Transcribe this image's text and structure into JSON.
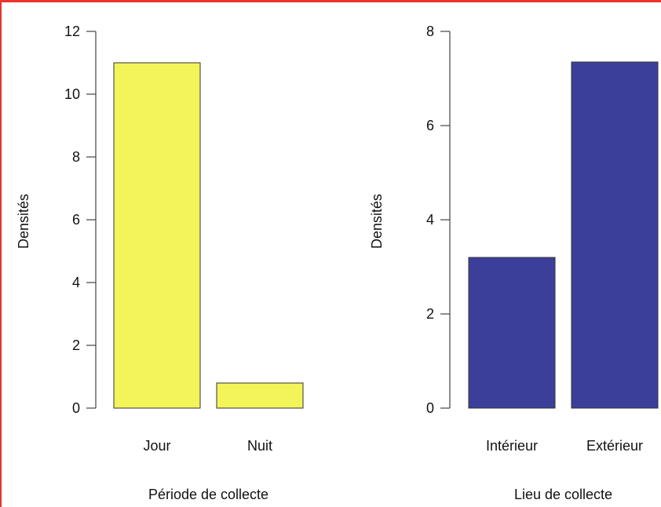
{
  "chart_data": [
    {
      "type": "bar",
      "categories": [
        "Jour",
        "Nuit"
      ],
      "values": [
        11.0,
        0.8
      ],
      "xlabel": "Période de collecte",
      "ylabel": "Densités",
      "ylim": [
        0,
        12
      ],
      "yticks": [
        0,
        2,
        4,
        6,
        8,
        10,
        12
      ],
      "bar_color": "#f3f35a",
      "grid": false
    },
    {
      "type": "bar",
      "categories": [
        "Intérieur",
        "Extérieur"
      ],
      "values": [
        3.2,
        7.35
      ],
      "xlabel": "Lieu de collecte",
      "ylabel": "Densités",
      "ylim": [
        0,
        8
      ],
      "yticks": [
        0,
        2,
        4,
        6,
        8
      ],
      "bar_color": "#3c3f9a",
      "grid": false
    }
  ]
}
